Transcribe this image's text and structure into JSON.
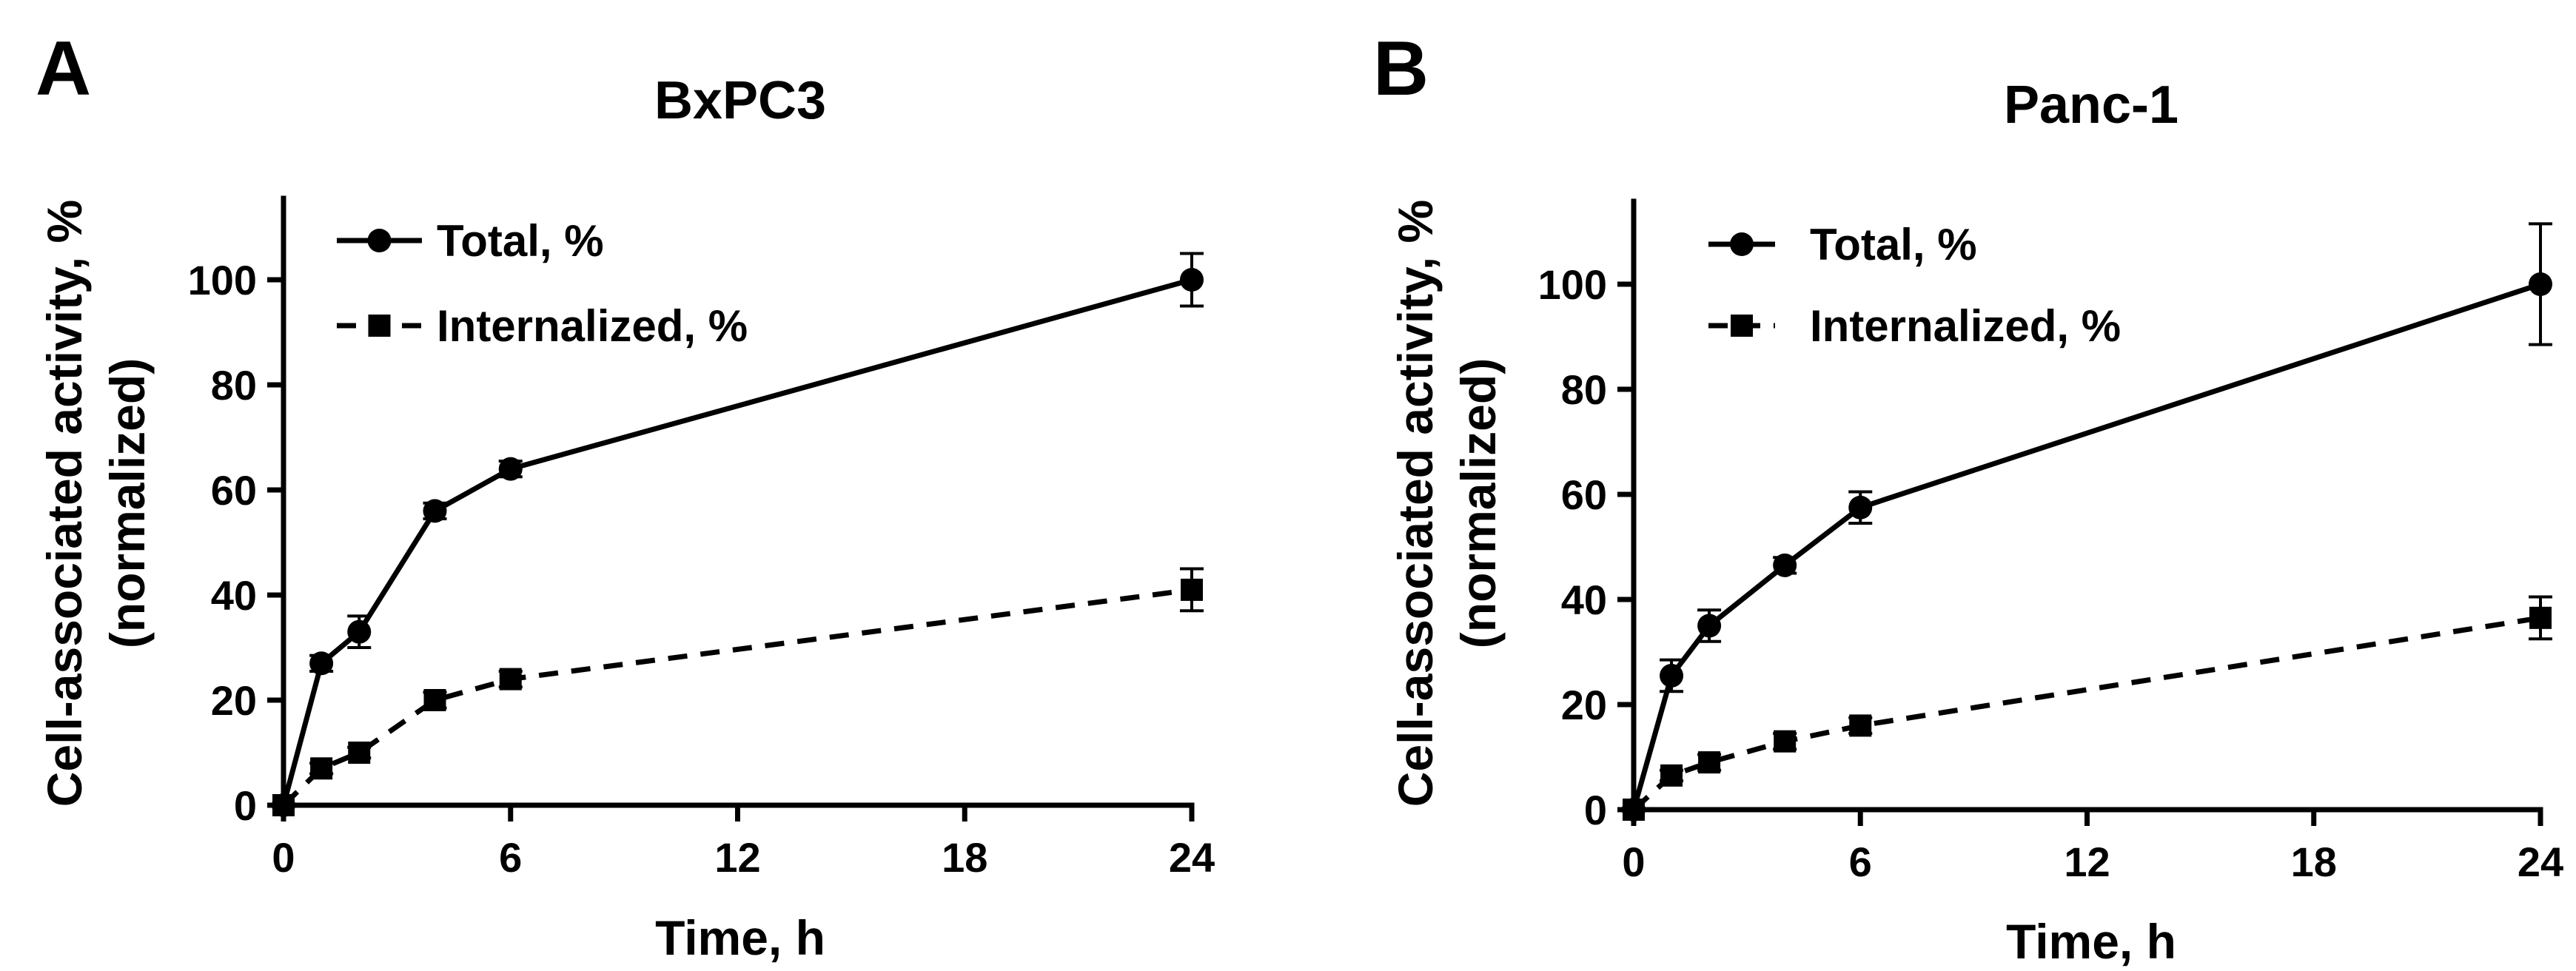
{
  "chart_data": [
    {
      "panel_label": "A",
      "type": "line",
      "title": "BxPC3",
      "xlabel": "Time, h",
      "ylabel": "Cell-associated activity, %",
      "ylabel_line2": "(normalized)",
      "xlim": [
        0,
        24
      ],
      "ylim": [
        0,
        115
      ],
      "xticks": [
        0,
        6,
        12,
        18,
        24
      ],
      "yticks": [
        0,
        20,
        40,
        60,
        80,
        100
      ],
      "legend_position": "top-left",
      "series": [
        {
          "name": "Total, %",
          "marker": "circle",
          "line_style": "solid",
          "x": [
            0,
            1,
            2,
            4,
            6,
            24
          ],
          "values": [
            0,
            27,
            33,
            56,
            64,
            100
          ],
          "errors": [
            0,
            1.5,
            3,
            1.5,
            1.5,
            5
          ]
        },
        {
          "name": "Internalized, %",
          "marker": "square",
          "line_style": "dashed",
          "x": [
            0,
            1,
            2,
            4,
            6,
            24
          ],
          "values": [
            0,
            7,
            10,
            20,
            24,
            41
          ],
          "errors": [
            0,
            1,
            1,
            1.5,
            1.5,
            4
          ]
        }
      ]
    },
    {
      "panel_label": "B",
      "type": "line",
      "title": "Panc-1",
      "xlabel": "Time, h",
      "ylabel": "Cell-associated activity, %",
      "ylabel_line2": "(normalized)",
      "xlim": [
        0,
        24
      ],
      "ylim": [
        0,
        115
      ],
      "xticks": [
        0,
        6,
        12,
        18,
        24
      ],
      "yticks": [
        0,
        20,
        40,
        60,
        80,
        100
      ],
      "legend_position": "top-left",
      "series": [
        {
          "name": "Total, %",
          "marker": "circle",
          "line_style": "solid",
          "x": [
            0,
            1,
            2,
            4,
            6,
            24
          ],
          "values": [
            0,
            25.5,
            35,
            46.5,
            57.5,
            100
          ],
          "errors": [
            0,
            3,
            3,
            1.5,
            3,
            11.5
          ]
        },
        {
          "name": "Internalized, %",
          "marker": "square",
          "line_style": "dashed",
          "x": [
            0,
            1,
            2,
            4,
            6,
            24
          ],
          "values": [
            0,
            6.5,
            9,
            13,
            16,
            36.5
          ],
          "errors": [
            0,
            1,
            1.5,
            1.5,
            1.5,
            4
          ]
        }
      ]
    }
  ]
}
